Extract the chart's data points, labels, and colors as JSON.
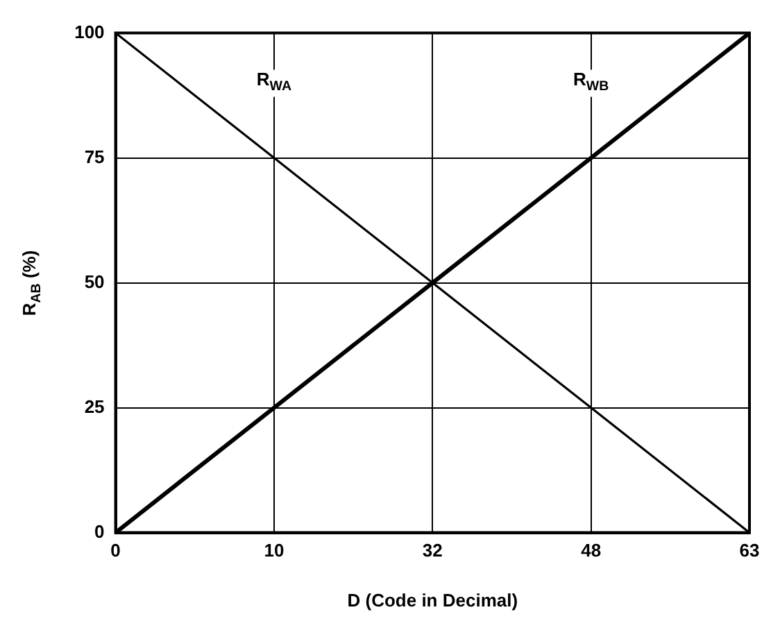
{
  "chart_data": {
    "type": "line",
    "xlabel": "D (Code in Decimal)",
    "ylabel": "R$_{AB}$ (%)",
    "categories": [
      "0",
      "10",
      "32",
      "48",
      "63"
    ],
    "series": [
      {
        "name": "R$_{WA}$",
        "color": "#000000",
        "values": [
          100,
          75,
          50,
          25,
          0
        ]
      },
      {
        "name": "R$_{WB}$",
        "color": "#000000",
        "values": [
          0,
          25,
          50,
          75,
          100
        ]
      }
    ],
    "ylim": [
      0,
      100
    ],
    "yticks": [
      0,
      25,
      50,
      75,
      100
    ],
    "grid": true,
    "legend": false,
    "marker": "none",
    "line_style": "solid"
  }
}
